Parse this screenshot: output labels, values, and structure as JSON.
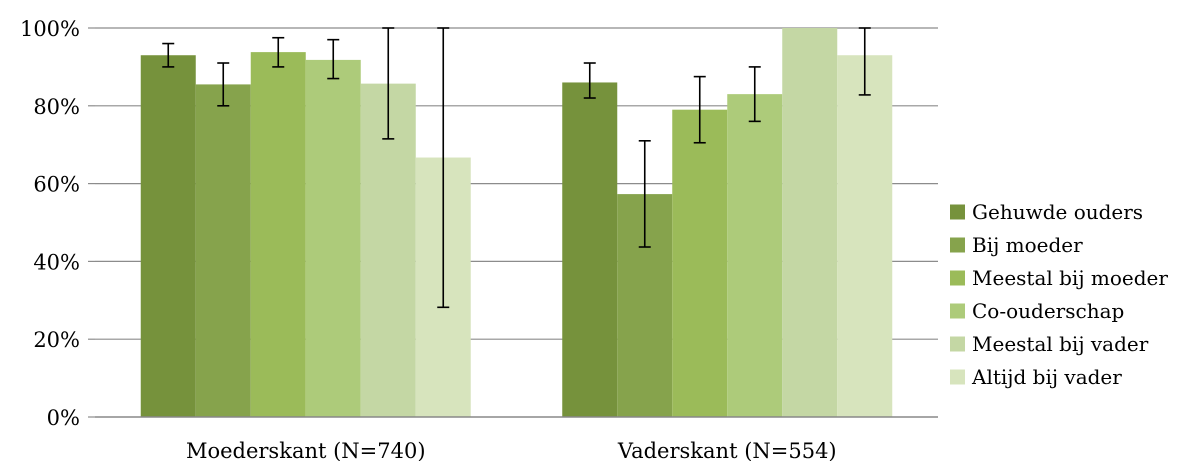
{
  "chart_data": {
    "type": "bar",
    "categories": [
      "Moederskant (N=740)",
      "Vaderskant (N=554)"
    ],
    "series": [
      {
        "name": "Gehuwde ouders",
        "color": "#76923c",
        "values": [
          0.93,
          0.86
        ],
        "err_low": [
          0.9,
          0.82
        ],
        "err_high": [
          0.96,
          0.91
        ]
      },
      {
        "name": "Bij moeder",
        "color": "#86a34c",
        "values": [
          0.855,
          0.573
        ],
        "err_low": [
          0.8,
          0.437
        ],
        "err_high": [
          0.91,
          0.71
        ]
      },
      {
        "name": "Meestal bij moeder",
        "color": "#9bbb59",
        "values": [
          0.938,
          0.79
        ],
        "err_low": [
          0.9,
          0.705
        ],
        "err_high": [
          0.975,
          0.875
        ]
      },
      {
        "name": "Co-ouderschap",
        "color": "#adcb7a",
        "values": [
          0.918,
          0.83
        ],
        "err_low": [
          0.87,
          0.76
        ],
        "err_high": [
          0.97,
          0.9
        ]
      },
      {
        "name": "Meestal bij vader",
        "color": "#c4d7a4",
        "values": [
          0.857,
          1.0
        ],
        "err_low": [
          0.715,
          null
        ],
        "err_high": [
          1.0,
          null
        ]
      },
      {
        "name": "Altijd bij vader",
        "color": "#d7e4bd",
        "values": [
          0.667,
          0.93
        ],
        "err_low": [
          0.282,
          0.828
        ],
        "err_high": [
          1.0,
          1.0
        ]
      }
    ],
    "ylim": [
      0,
      1
    ],
    "yticks": [
      "0%",
      "20%",
      "40%",
      "60%",
      "80%",
      "100%"
    ],
    "grid": true,
    "legend": "right",
    "title": "",
    "xlabel": "",
    "ylabel": ""
  }
}
